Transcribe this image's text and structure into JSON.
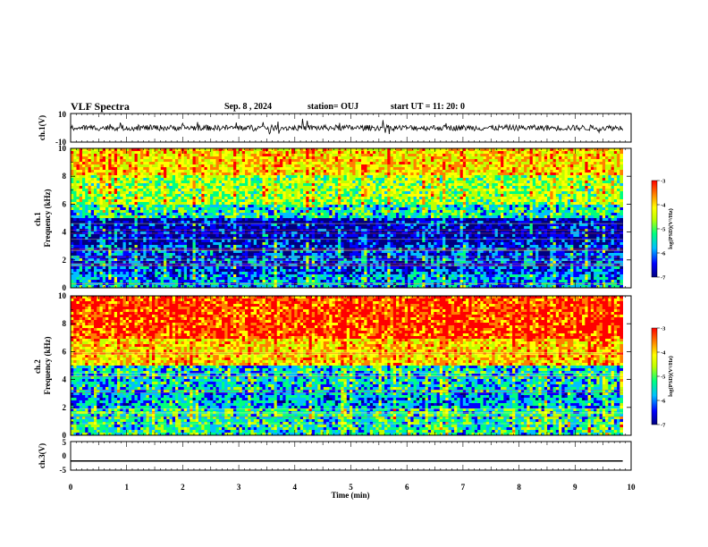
{
  "header": {
    "title": "VLF Spectra",
    "date": "Sep. 8 , 2024",
    "station": "station= OUJ",
    "start_ut": "start UT =   11: 20: 0"
  },
  "colors": {
    "spectrogram_colormap": [
      "#00007f",
      "#0000ff",
      "#00bfff",
      "#00ff7f",
      "#bfff00",
      "#ffff00",
      "#ff7f00",
      "#ff0000"
    ],
    "frame": "#000000"
  },
  "chart_data": [
    {
      "type": "line",
      "panel": "ch.1 waveform",
      "ylabel": "ch.1(V)",
      "ylim": [
        -10,
        10
      ],
      "yticks": [
        "10",
        "-10"
      ],
      "series": [
        {
          "mean": 0,
          "typical_amplitude": 2
        }
      ]
    },
    {
      "type": "heatmap",
      "panel": "ch.1 spectrogram",
      "ylabel": "ch.1\nFrequency (kHz)",
      "ylim": [
        0,
        10
      ],
      "yticks": [
        "0",
        "2",
        "4",
        "6",
        "8",
        "10"
      ],
      "xlim": [
        0,
        10
      ],
      "colorbar": {
        "label": "log(PSD)(V²/Hz)",
        "range": [
          -7,
          -3
        ],
        "ticks": [
          "-3",
          "-4",
          "-5",
          "-6",
          "-7"
        ]
      },
      "band_profile_log_psd": [
        {
          "freq_khz": [
            0,
            1
          ],
          "value": -5.8
        },
        {
          "freq_khz": [
            1,
            3
          ],
          "value": -6.2
        },
        {
          "freq_khz": [
            3,
            5
          ],
          "value": -6.6
        },
        {
          "freq_khz": [
            5,
            6
          ],
          "value": -5.5
        },
        {
          "freq_khz": [
            6,
            8
          ],
          "value": -4.8
        },
        {
          "freq_khz": [
            8,
            10
          ],
          "value": -4.2
        }
      ]
    },
    {
      "type": "heatmap",
      "panel": "ch.2 spectrogram",
      "ylabel": "ch.2\nFrequency (kHz)",
      "ylim": [
        0,
        10
      ],
      "yticks": [
        "0",
        "2",
        "4",
        "6",
        "8",
        "10"
      ],
      "xlim": [
        0,
        10
      ],
      "colorbar": {
        "label": "log(PSD)(V²/Hz)",
        "range": [
          -7,
          -3
        ],
        "ticks": [
          "-3",
          "-4",
          "-5",
          "-6",
          "-7"
        ]
      },
      "band_profile_log_psd": [
        {
          "freq_khz": [
            0,
            2
          ],
          "value": -5.4
        },
        {
          "freq_khz": [
            2,
            3
          ],
          "value": -5.8
        },
        {
          "freq_khz": [
            3,
            5
          ],
          "value": -5.6
        },
        {
          "freq_khz": [
            5,
            7
          ],
          "value": -4.2
        },
        {
          "freq_khz": [
            7,
            10
          ],
          "value": -3.5
        }
      ]
    },
    {
      "type": "line",
      "panel": "ch.3 waveform",
      "ylabel": "ch.3(V)",
      "ylim": [
        -5,
        5
      ],
      "yticks": [
        "5",
        "0",
        "-5"
      ],
      "series": [
        {
          "x": [
            0,
            9.85
          ],
          "y": [
            -1.8,
            -1.8
          ]
        }
      ]
    }
  ],
  "xaxis": {
    "label": "Time (min)",
    "ticks": [
      "0",
      "1",
      "2",
      "3",
      "4",
      "5",
      "6",
      "7",
      "8",
      "9",
      "10"
    ],
    "data_end_min": 9.85
  }
}
